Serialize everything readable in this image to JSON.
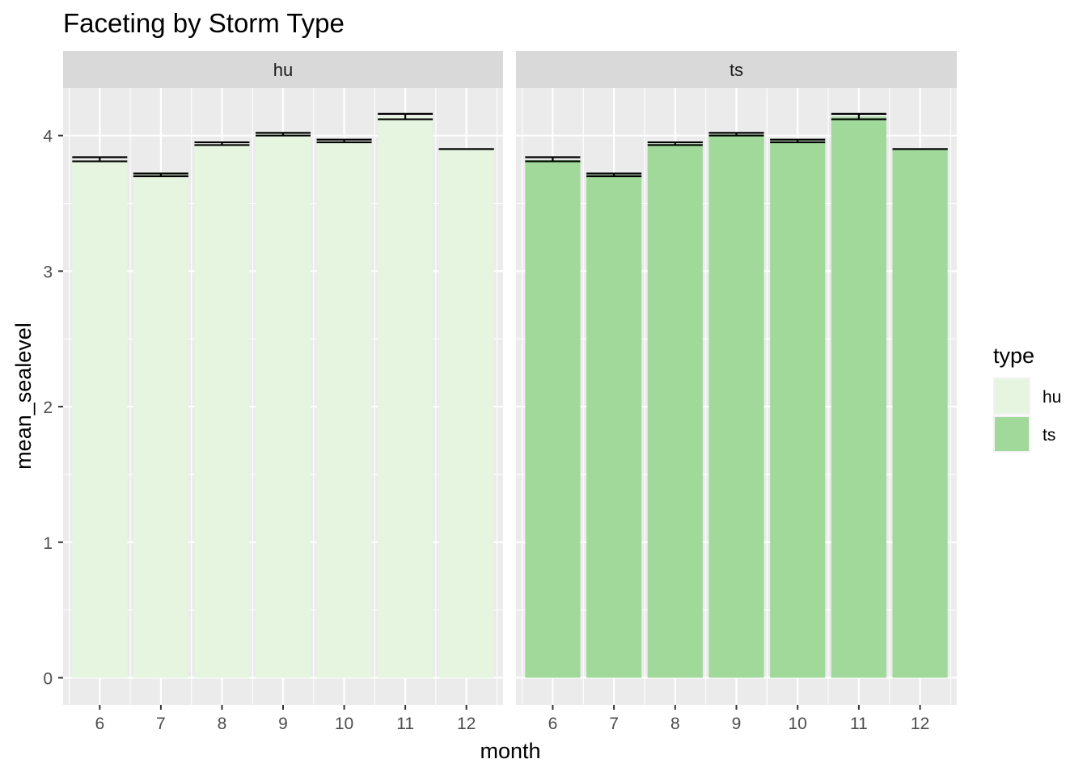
{
  "chart_data": {
    "type": "bar",
    "title": "Faceting by Storm Type",
    "xlabel": "month",
    "ylabel": "mean_sealevel",
    "ylim": [
      -0.2,
      4.35
    ],
    "yticks": [
      0,
      1,
      2,
      3,
      4
    ],
    "categories": [
      "6",
      "7",
      "8",
      "9",
      "10",
      "11",
      "12"
    ],
    "facets": [
      "hu",
      "ts"
    ],
    "grid": true,
    "legend": {
      "title": "type",
      "position": "right"
    },
    "series": [
      {
        "name": "hu",
        "color": "#E5F5E0",
        "values": [
          3.82,
          3.71,
          3.94,
          4.01,
          3.96,
          4.14,
          3.9
        ],
        "error_low": [
          3.81,
          3.7,
          3.93,
          4.0,
          3.95,
          4.12,
          3.9
        ],
        "error_high": [
          3.84,
          3.72,
          3.95,
          4.02,
          3.97,
          4.16,
          3.9
        ]
      },
      {
        "name": "ts",
        "color": "#A1D99B",
        "values": [
          3.82,
          3.71,
          3.94,
          4.01,
          3.96,
          4.14,
          3.9
        ],
        "error_low": [
          3.81,
          3.7,
          3.93,
          4.0,
          3.95,
          4.12,
          3.9
        ],
        "error_high": [
          3.84,
          3.72,
          3.95,
          4.02,
          3.97,
          4.16,
          3.9
        ]
      }
    ]
  },
  "theme": {
    "panel_bg": "#EBEBEB",
    "strip_bg": "#D9D9D9",
    "grid_color": "#FFFFFF",
    "tick_color": "#333333",
    "errorbar_color": "#000000"
  }
}
